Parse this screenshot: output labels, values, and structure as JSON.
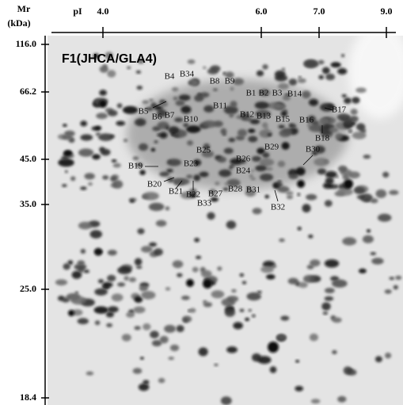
{
  "axes": {
    "y_title": [
      "Mr",
      "(kDa)"
    ],
    "y_ticks": [
      "116.0",
      "66.2",
      "45.0",
      "35.0",
      "25.0",
      "18.4"
    ],
    "x_title": "pI",
    "x_ticks": [
      "4.0",
      "6.0",
      "7.0",
      "9.0"
    ]
  },
  "panel_label": "F1(JHCA/GLA4)",
  "spots": [
    {
      "label": "B1"
    },
    {
      "label": "B2"
    },
    {
      "label": "B3"
    },
    {
      "label": "B4"
    },
    {
      "label": "B5"
    },
    {
      "label": "B6"
    },
    {
      "label": "B7"
    },
    {
      "label": "B8"
    },
    {
      "label": "B9"
    },
    {
      "label": "B10"
    },
    {
      "label": "B11"
    },
    {
      "label": "B12"
    },
    {
      "label": "B13"
    },
    {
      "label": "B14"
    },
    {
      "label": "B15"
    },
    {
      "label": "B16"
    },
    {
      "label": "B17"
    },
    {
      "label": "B18"
    },
    {
      "label": "B19"
    },
    {
      "label": "B20"
    },
    {
      "label": "B21"
    },
    {
      "label": "B22"
    },
    {
      "label": "B23"
    },
    {
      "label": "B24"
    },
    {
      "label": "B25"
    },
    {
      "label": "B26"
    },
    {
      "label": "B27"
    },
    {
      "label": "B28"
    },
    {
      "label": "B29"
    },
    {
      "label": "B30"
    },
    {
      "label": "B31"
    },
    {
      "label": "B32"
    },
    {
      "label": "B33"
    },
    {
      "label": "B34"
    }
  ]
}
